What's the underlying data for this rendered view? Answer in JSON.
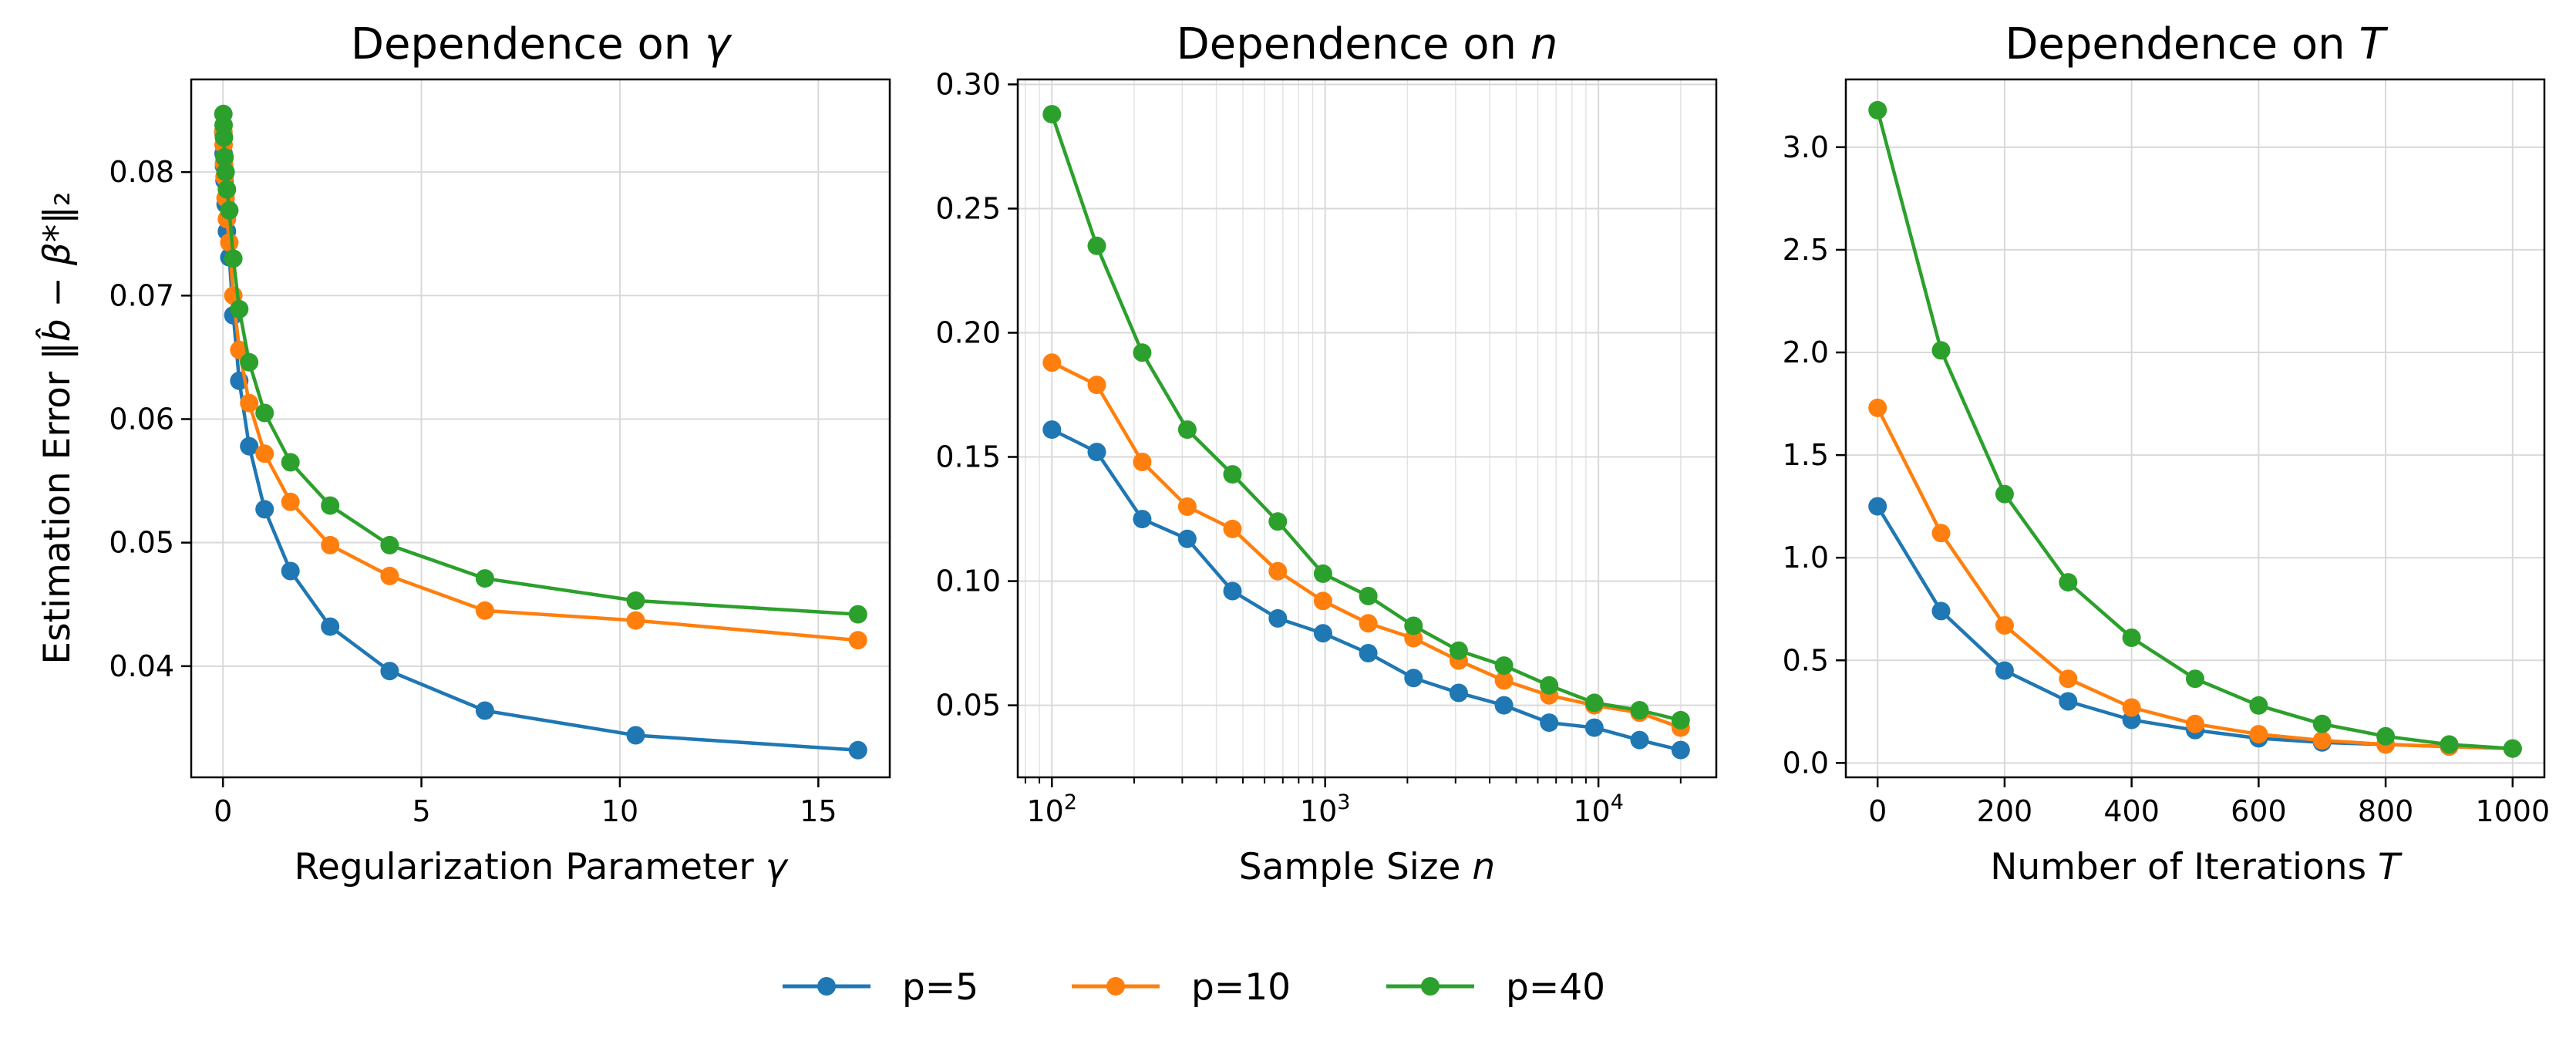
{
  "legend": [
    {
      "name": "p=5",
      "color": "#1f77b4"
    },
    {
      "name": "p=10",
      "color": "#ff7f0e"
    },
    {
      "name": "p=40",
      "color": "#2ca02c"
    }
  ],
  "chart_data": [
    {
      "type": "line",
      "title_text": "Dependence on ",
      "title_math": "γ",
      "xlabel_text": "Regularization Parameter ",
      "xlabel_math": "γ",
      "ylabel_text": "Estimation Error ‖",
      "ylabel_math": "b̂ − β*",
      "ylabel_tail": "‖₂",
      "xscale": "linear",
      "xlim": [
        -0.8,
        16.8
      ],
      "ylim": [
        0.031,
        0.0875
      ],
      "xticks": [
        0,
        5,
        10,
        15
      ],
      "xtick_labels": [
        "0",
        "5",
        "10",
        "15"
      ],
      "yticks": [
        0.04,
        0.05,
        0.06,
        0.07,
        0.08
      ],
      "ytick_labels": [
        "0.04",
        "0.05",
        "0.06",
        "0.07",
        "0.08"
      ],
      "grid": true,
      "x": [
        0.01,
        0.016,
        0.026,
        0.04,
        0.066,
        0.1,
        0.16,
        0.26,
        0.41,
        0.66,
        1.05,
        1.7,
        2.7,
        4.2,
        6.6,
        10.4,
        16.0
      ],
      "series": [
        {
          "name": "p=5",
          "values": [
            0.0832,
            0.0815,
            0.0805,
            0.0793,
            0.0774,
            0.0752,
            0.0731,
            0.0684,
            0.0631,
            0.0578,
            0.0527,
            0.0477,
            0.0432,
            0.0396,
            0.0364,
            0.0344,
            0.0332
          ]
        },
        {
          "name": "p=10",
          "values": [
            0.0833,
            0.0822,
            0.0807,
            0.0796,
            0.0779,
            0.0762,
            0.0743,
            0.07,
            0.0656,
            0.0613,
            0.0572,
            0.0533,
            0.0498,
            0.0473,
            0.0445,
            0.0437,
            0.0421
          ]
        },
        {
          "name": "p=40",
          "values": [
            0.0847,
            0.0838,
            0.0828,
            0.0812,
            0.08,
            0.0786,
            0.0769,
            0.073,
            0.0689,
            0.0646,
            0.0605,
            0.0565,
            0.053,
            0.0498,
            0.0471,
            0.0453,
            0.0442
          ]
        }
      ]
    },
    {
      "type": "line",
      "title_text": "Dependence on ",
      "title_math": "n",
      "xlabel_text": "Sample Size ",
      "xlabel_math": "n",
      "xscale": "log",
      "xlim": [
        75,
        27000
      ],
      "ylim": [
        0.021,
        0.302
      ],
      "xticks": [
        100,
        1000,
        10000
      ],
      "xtick_labels": [
        "10",
        "10",
        "10"
      ],
      "xtick_exps": [
        "2",
        "3",
        "4"
      ],
      "yticks": [
        0.05,
        0.1,
        0.15,
        0.2,
        0.25,
        0.3
      ],
      "ytick_labels": [
        "0.05",
        "0.10",
        "0.15",
        "0.20",
        "0.25",
        "0.30"
      ],
      "grid": true,
      "x": [
        100,
        146,
        214,
        313,
        458,
        671,
        982,
        1438,
        2105,
        3081,
        4510,
        6601,
        9662,
        14142,
        20000
      ],
      "series": [
        {
          "name": "p=5",
          "values": [
            0.161,
            0.152,
            0.125,
            0.117,
            0.096,
            0.085,
            0.079,
            0.071,
            0.061,
            0.055,
            0.05,
            0.043,
            0.041,
            0.036,
            0.032
          ]
        },
        {
          "name": "p=10",
          "values": [
            0.188,
            0.179,
            0.148,
            0.13,
            0.121,
            0.104,
            0.092,
            0.083,
            0.077,
            0.068,
            0.06,
            0.054,
            0.05,
            0.047,
            0.041
          ]
        },
        {
          "name": "p=40",
          "values": [
            0.288,
            0.235,
            0.192,
            0.161,
            0.143,
            0.124,
            0.103,
            0.094,
            0.082,
            0.072,
            0.066,
            0.058,
            0.051,
            0.048,
            0.044
          ]
        }
      ]
    },
    {
      "type": "line",
      "title_text": "Dependence on ",
      "title_math": "T",
      "xlabel_text": "Number of Iterations ",
      "xlabel_math": "T",
      "xscale": "linear",
      "xlim": [
        -50,
        1050
      ],
      "ylim": [
        -0.07,
        3.33
      ],
      "xticks": [
        0,
        200,
        400,
        600,
        800,
        1000
      ],
      "xtick_labels": [
        "0",
        "200",
        "400",
        "600",
        "800",
        "1000"
      ],
      "yticks": [
        0.0,
        0.5,
        1.0,
        1.5,
        2.0,
        2.5,
        3.0
      ],
      "ytick_labels": [
        "0.0",
        "0.5",
        "1.0",
        "1.5",
        "2.0",
        "2.5",
        "3.0"
      ],
      "grid": true,
      "x": [
        0,
        100,
        200,
        300,
        400,
        500,
        600,
        700,
        800,
        900,
        1000
      ],
      "series": [
        {
          "name": "p=5",
          "values": [
            1.25,
            0.74,
            0.45,
            0.3,
            0.21,
            0.16,
            0.12,
            0.1,
            0.09,
            0.08,
            0.07
          ]
        },
        {
          "name": "p=10",
          "values": [
            1.73,
            1.12,
            0.67,
            0.41,
            0.27,
            0.19,
            0.14,
            0.11,
            0.09,
            0.08,
            0.07
          ]
        },
        {
          "name": "p=40",
          "values": [
            3.18,
            2.01,
            1.31,
            0.88,
            0.61,
            0.41,
            0.28,
            0.19,
            0.13,
            0.09,
            0.07
          ]
        }
      ]
    }
  ]
}
